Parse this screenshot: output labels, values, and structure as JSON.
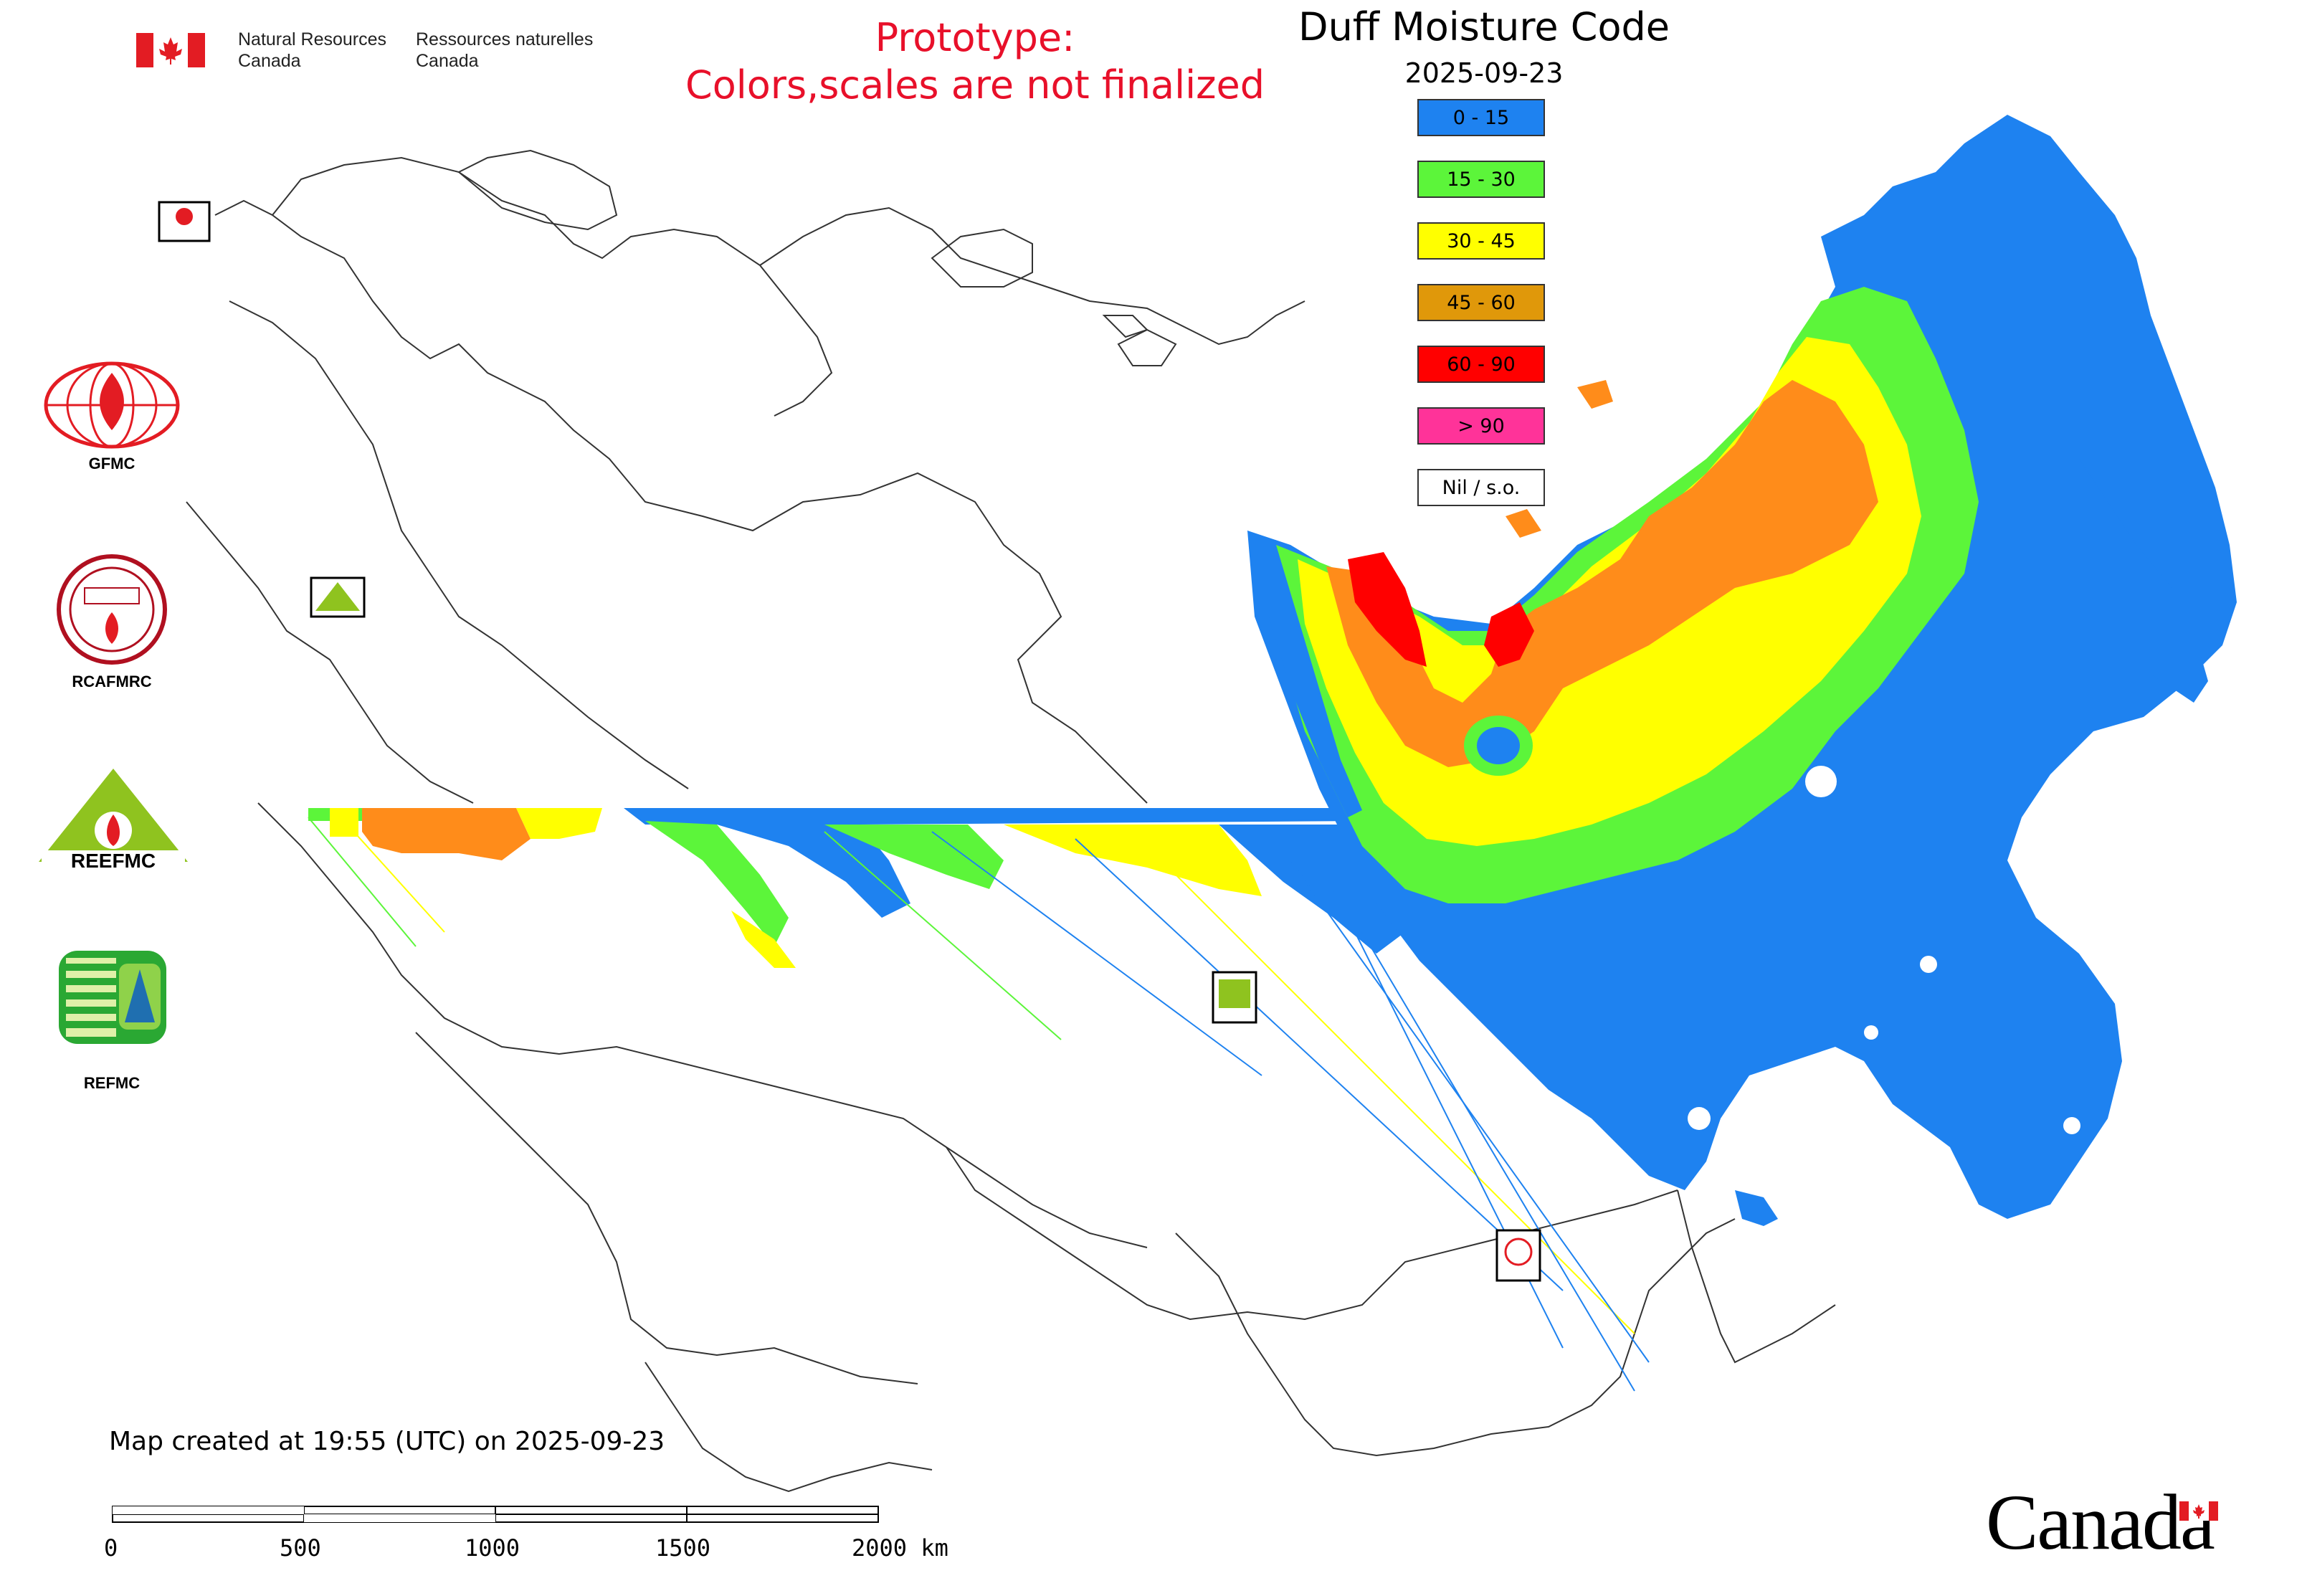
{
  "header": {
    "agency_en": "Natural Resources\nCanada",
    "agency_fr": "Ressources naturelles\nCanada",
    "prototype_line1": "Prototype:",
    "prototype_line2": "Colors,scales are not finalized"
  },
  "map": {
    "title": "Duff Moisture Code",
    "date": "2025-09-23",
    "created": "Map created at 19:55 (UTC) on 2025-09-23"
  },
  "legend": [
    {
      "label": "0 - 15",
      "color": "#1e82f0"
    },
    {
      "label": "15 - 30",
      "color": "#5cf53a"
    },
    {
      "label": "30 - 45",
      "color": "#ffff00"
    },
    {
      "label": "45 - 60",
      "color": "#e0980a"
    },
    {
      "label": "60 - 90",
      "color": "#ff0000"
    },
    {
      "label": "> 90",
      "color": "#ff3399"
    },
    {
      "label": "Nil / s.o.",
      "color": "#ffffff"
    }
  ],
  "logos": {
    "gfmc": "GFMC",
    "rcafmrc": "RCAFMRC",
    "reefmc": "REEFMC",
    "refmc": "REFMC"
  },
  "scale_bar": {
    "ticks": [
      "0",
      "500",
      "1000",
      "1500",
      "2000 km"
    ]
  },
  "wordmark": "Canada",
  "colors": {
    "prototype_text": "#e8102a",
    "canada_red": "#e31c23"
  }
}
